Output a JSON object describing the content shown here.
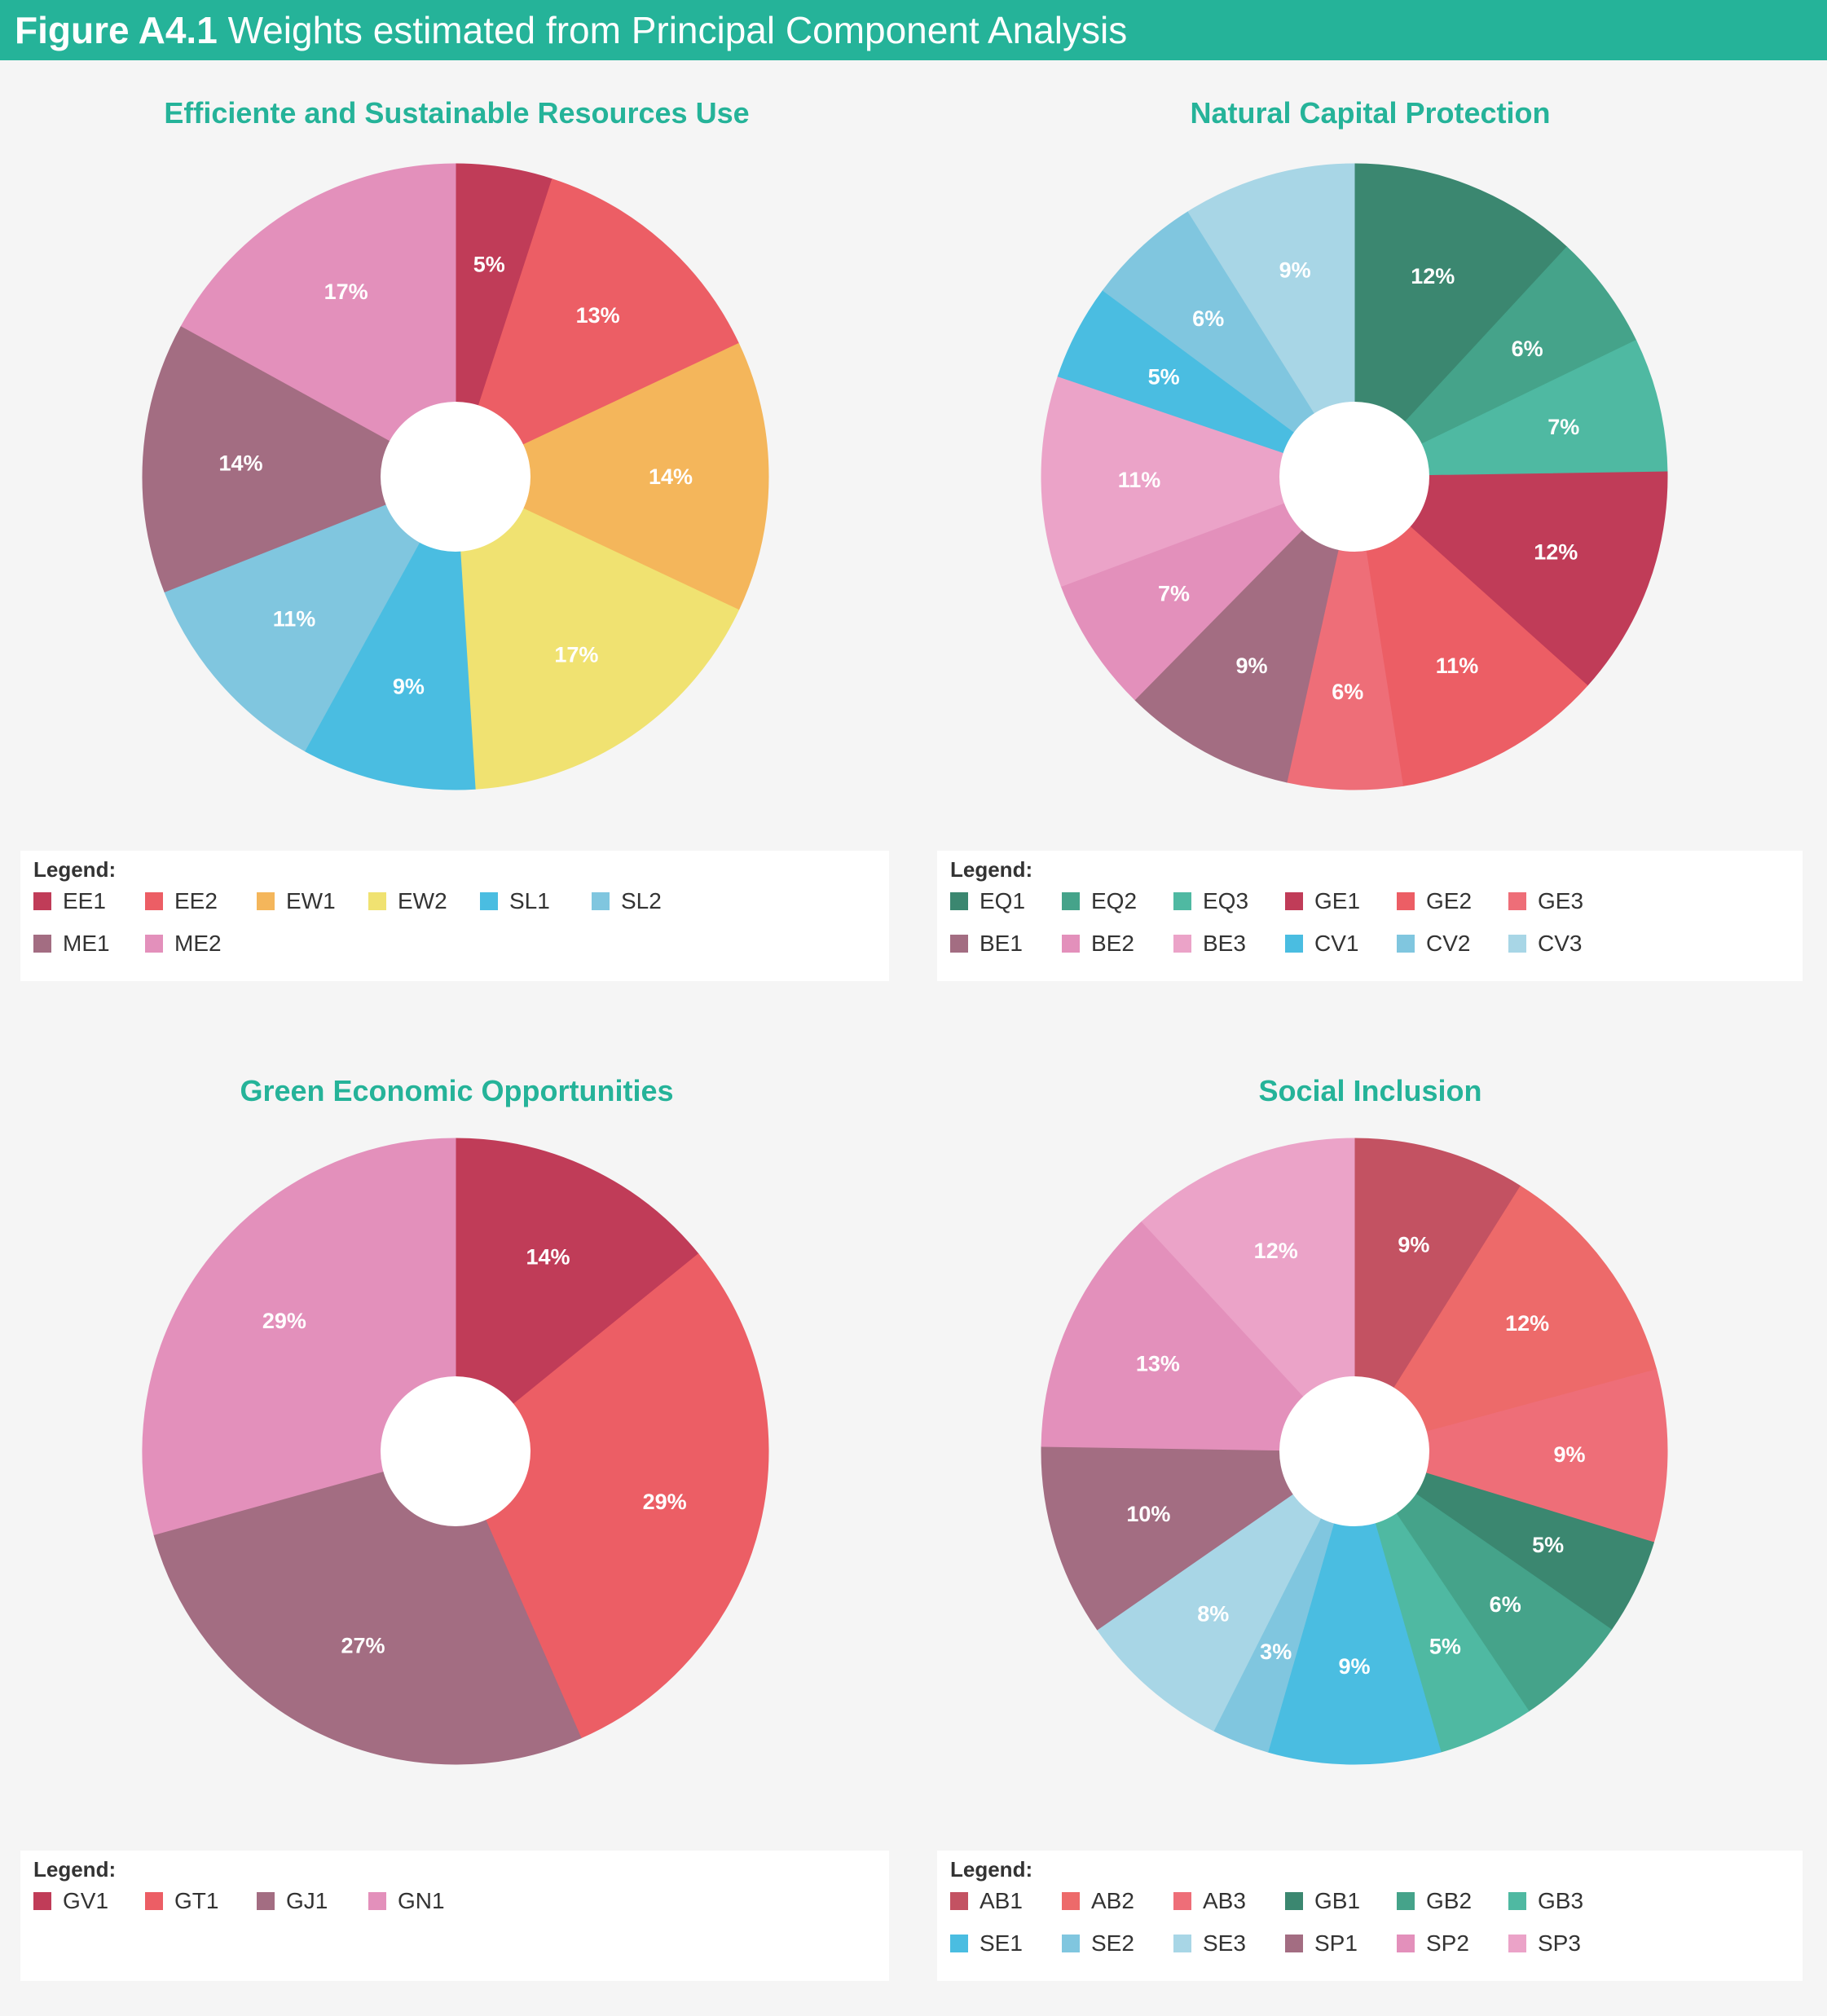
{
  "header": {
    "figure_label": "Figure A4.1",
    "title": "Weights estimated from Principal Component Analysis"
  },
  "legend_title": "Legend:",
  "chart_data": [
    {
      "type": "pie",
      "title": "Efficiente and Sustainable Resources Use",
      "labels": [
        "EE1",
        "EE2",
        "EW1",
        "EW2",
        "SL1",
        "SL2",
        "ME1",
        "ME2"
      ],
      "values": [
        5,
        13,
        14,
        17,
        9,
        11,
        14,
        17
      ],
      "value_labels": [
        "5%",
        "13%",
        "14%",
        "17%",
        "9%",
        "11%",
        "14%",
        "17%"
      ],
      "colors": [
        "#c03c58",
        "#ec5e65",
        "#f4b65b",
        "#f0e271",
        "#4abde1",
        "#80c6df",
        "#a36d82",
        "#e390bb"
      ],
      "legend_placement": "bottom"
    },
    {
      "type": "pie",
      "title": "Natural Capital Protection",
      "labels": [
        "EQ1",
        "EQ2",
        "EQ3",
        "GE1",
        "GE2",
        "GE3",
        "BE1",
        "BE2",
        "BE3",
        "CV1",
        "CV2",
        "CV3"
      ],
      "values": [
        12,
        6,
        7,
        12,
        11,
        6,
        9,
        7,
        11,
        5,
        6,
        9
      ],
      "value_labels": [
        "12%",
        "6%",
        "7%",
        "12%",
        "11%",
        "6%",
        "9%",
        "7%",
        "11%",
        "5%",
        "6%",
        "9%"
      ],
      "colors": [
        "#3b8770",
        "#45a38a",
        "#4fb9a2",
        "#c03c58",
        "#ec5e65",
        "#ee6e78",
        "#a36d82",
        "#e390bb",
        "#eba3c8",
        "#4abde1",
        "#80c6df",
        "#a8d6e6"
      ],
      "legend_placement": "bottom"
    },
    {
      "type": "pie",
      "title": "Green Economic Opportunities",
      "labels": [
        "GV1",
        "GT1",
        "GJ1",
        "GN1"
      ],
      "values": [
        14,
        29,
        27,
        29
      ],
      "value_labels": [
        "14%",
        "29%",
        "27%",
        "29%"
      ],
      "colors": [
        "#c03c58",
        "#ec5e65",
        "#a36d82",
        "#e390bb"
      ],
      "legend_placement": "bottom"
    },
    {
      "type": "pie",
      "title": "Social Inclusion",
      "labels": [
        "AB1",
        "AB2",
        "AB3",
        "GB1",
        "GB2",
        "GB3",
        "SE1",
        "SE2",
        "SE3",
        "SP1",
        "SP2",
        "SP3"
      ],
      "values": [
        9,
        12,
        9,
        5,
        6,
        5,
        9,
        3,
        8,
        10,
        13,
        12
      ],
      "value_labels": [
        "9%",
        "12%",
        "9%",
        "5%",
        "6%",
        "5%",
        "9%",
        "3%",
        "8%",
        "10%",
        "13%",
        "12%"
      ],
      "colors": [
        "#c35262",
        "#ed6a6a",
        "#ee6e78",
        "#3b8770",
        "#45a38a",
        "#4fb9a2",
        "#4abde1",
        "#80c6df",
        "#a8d6e6",
        "#a36d82",
        "#e390bb",
        "#eba3c8"
      ],
      "legend_placement": "bottom"
    }
  ]
}
